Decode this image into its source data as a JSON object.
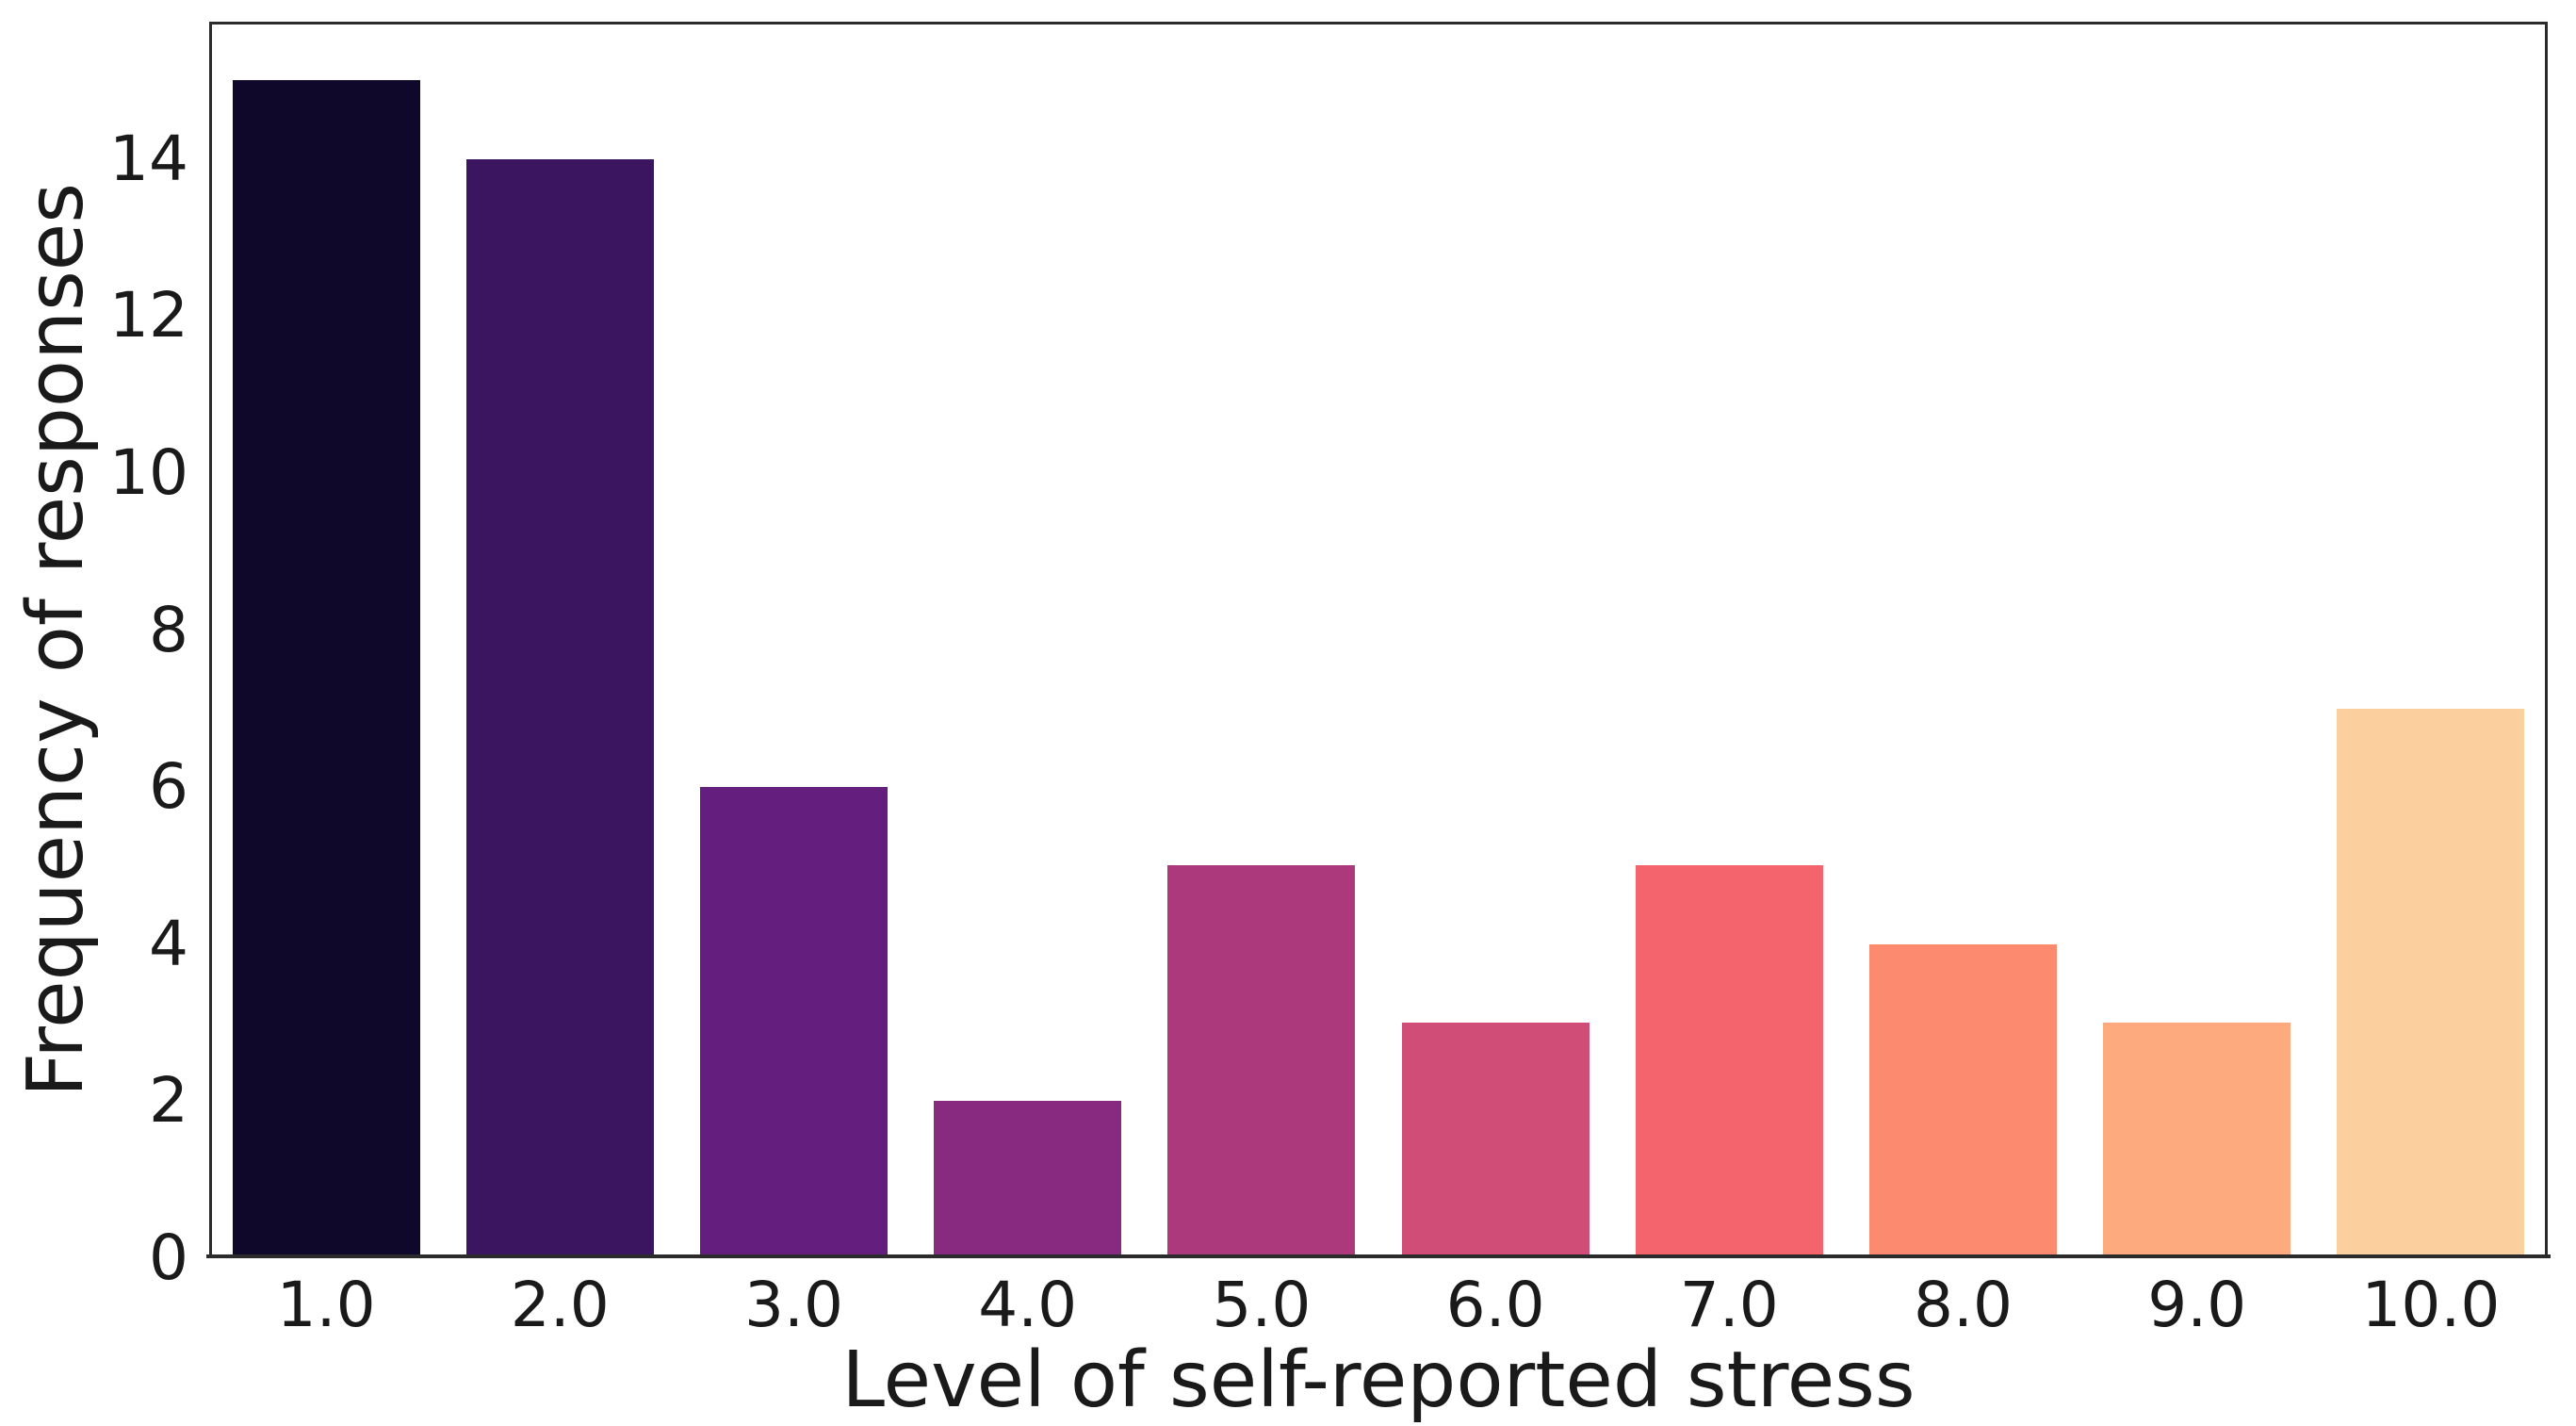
{
  "figure": {
    "background": "#ffffff",
    "spine_color": "#2b2b2b",
    "text_color": "#1a1a1a"
  },
  "chart_data": {
    "type": "bar",
    "title": "",
    "xlabel": "Level of self-reported stress",
    "ylabel": "Frequency of responses",
    "categories": [
      "1.0",
      "2.0",
      "3.0",
      "4.0",
      "5.0",
      "6.0",
      "7.0",
      "8.0",
      "9.0",
      "10.0"
    ],
    "values": [
      15,
      14,
      6,
      2,
      5,
      3,
      5,
      4,
      3,
      7
    ],
    "bar_colors": [
      "#10082a",
      "#3b1560",
      "#641e7d",
      "#872a80",
      "#ad397d",
      "#d04d78",
      "#f3646c",
      "#fc8a6e",
      "#fdaa7f",
      "#fcd09e"
    ],
    "yticks": [
      0,
      2,
      4,
      6,
      8,
      10,
      12,
      14
    ],
    "ylim": [
      0,
      15.75
    ],
    "grid": false,
    "legend": null,
    "bar_width_fraction": 0.8
  }
}
